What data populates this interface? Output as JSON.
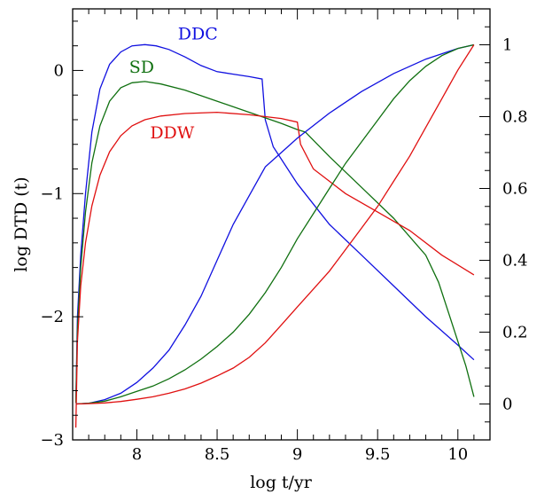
{
  "colors": {
    "DDC": "#1010e0",
    "SD": "#107010",
    "DDW": "#e01010"
  },
  "chart_data": {
    "type": "line",
    "title": "",
    "xlabel": "log t/yr",
    "ylabel": "log DTD (t)",
    "ylabel_right": "",
    "xlim": [
      7.6,
      10.2
    ],
    "ylim_left": [
      -3,
      0.5
    ],
    "ylim_right": [
      -0.1,
      1.1
    ],
    "x_ticks": [
      "8",
      "8.5",
      "9",
      "9.5",
      "10"
    ],
    "x_tick_values": [
      8,
      8.5,
      9,
      9.5,
      10
    ],
    "y_left_ticks": [
      "−3",
      "−2",
      "−1",
      "0"
    ],
    "y_left_tick_values": [
      -3,
      -2,
      -1,
      0
    ],
    "y_right_ticks": [
      "0",
      "0.2",
      "0.4",
      "0.6",
      "0.8",
      "1"
    ],
    "y_right_tick_values": [
      0,
      0.2,
      0.4,
      0.6,
      0.8,
      1
    ],
    "grid": false,
    "series_labels": [
      {
        "name": "DDC",
        "x": 8.38,
        "y": 0.25
      },
      {
        "name": "SD",
        "x": 8.03,
        "y": -0.02
      },
      {
        "name": "DDW",
        "x": 8.22,
        "y": -0.55
      }
    ],
    "series": [
      {
        "name": "DDC",
        "axis": "left",
        "x": [
          7.62,
          7.63,
          7.65,
          7.68,
          7.72,
          7.77,
          7.83,
          7.9,
          7.97,
          8.05,
          8.12,
          8.2,
          8.3,
          8.4,
          8.5,
          8.6,
          8.7,
          8.78,
          8.8,
          8.85,
          9.0,
          9.2,
          9.4,
          9.6,
          9.8,
          10.0,
          10.1
        ],
        "y": [
          -2.7,
          -2.0,
          -1.5,
          -1.0,
          -0.5,
          -0.15,
          0.05,
          0.15,
          0.2,
          0.21,
          0.2,
          0.17,
          0.11,
          0.04,
          -0.01,
          -0.03,
          -0.05,
          -0.07,
          -0.4,
          -0.62,
          -0.92,
          -1.25,
          -1.5,
          -1.75,
          -2.0,
          -2.23,
          -2.35
        ]
      },
      {
        "name": "SD",
        "axis": "left",
        "x": [
          7.62,
          7.63,
          7.65,
          7.68,
          7.72,
          7.77,
          7.83,
          7.9,
          7.97,
          8.05,
          8.15,
          8.3,
          8.5,
          8.7,
          8.9,
          9.0,
          9.05,
          9.2,
          9.4,
          9.6,
          9.8,
          9.88,
          9.95,
          10.05,
          10.1
        ],
        "y": [
          -2.7,
          -2.1,
          -1.6,
          -1.15,
          -0.75,
          -0.45,
          -0.25,
          -0.14,
          -0.1,
          -0.09,
          -0.11,
          -0.16,
          -0.25,
          -0.34,
          -0.43,
          -0.48,
          -0.5,
          -0.7,
          -0.95,
          -1.2,
          -1.5,
          -1.72,
          -2.0,
          -2.4,
          -2.65
        ]
      },
      {
        "name": "DDW",
        "axis": "left",
        "x": [
          7.62,
          7.63,
          7.65,
          7.68,
          7.72,
          7.77,
          7.83,
          7.9,
          7.97,
          8.05,
          8.15,
          8.3,
          8.5,
          8.7,
          8.9,
          9.0,
          9.02,
          9.1,
          9.3,
          9.5,
          9.7,
          9.9,
          10.1
        ],
        "y": [
          -2.9,
          -2.2,
          -1.75,
          -1.4,
          -1.1,
          -0.85,
          -0.66,
          -0.53,
          -0.45,
          -0.4,
          -0.37,
          -0.35,
          -0.34,
          -0.36,
          -0.39,
          -0.42,
          -0.6,
          -0.8,
          -1.0,
          -1.15,
          -1.3,
          -1.5,
          -1.66
        ]
      },
      {
        "name": "DDC",
        "axis": "right",
        "label_hidden": true,
        "x": [
          7.62,
          7.7,
          7.8,
          7.9,
          8.0,
          8.1,
          8.2,
          8.3,
          8.4,
          8.5,
          8.6,
          8.7,
          8.8,
          8.9,
          9.0,
          9.2,
          9.4,
          9.6,
          9.8,
          10.0,
          10.1
        ],
        "y": [
          0.0,
          0.002,
          0.012,
          0.03,
          0.06,
          0.1,
          0.15,
          0.22,
          0.3,
          0.4,
          0.5,
          0.58,
          0.66,
          0.7,
          0.74,
          0.81,
          0.87,
          0.92,
          0.96,
          0.99,
          1.0
        ]
      },
      {
        "name": "SD",
        "axis": "right",
        "label_hidden": true,
        "x": [
          7.62,
          7.7,
          7.8,
          7.9,
          8.0,
          8.1,
          8.2,
          8.3,
          8.4,
          8.5,
          8.6,
          8.7,
          8.8,
          8.9,
          9.0,
          9.1,
          9.2,
          9.3,
          9.4,
          9.5,
          9.6,
          9.7,
          9.8,
          9.9,
          10.0,
          10.1
        ],
        "y": [
          0.0,
          0.002,
          0.008,
          0.02,
          0.035,
          0.05,
          0.07,
          0.095,
          0.125,
          0.16,
          0.2,
          0.25,
          0.31,
          0.38,
          0.46,
          0.53,
          0.6,
          0.67,
          0.73,
          0.79,
          0.85,
          0.9,
          0.94,
          0.97,
          0.99,
          1.0
        ]
      },
      {
        "name": "DDW",
        "axis": "right",
        "label_hidden": true,
        "x": [
          7.62,
          7.7,
          7.8,
          7.9,
          8.0,
          8.1,
          8.2,
          8.3,
          8.4,
          8.5,
          8.6,
          8.7,
          8.8,
          8.9,
          9.0,
          9.1,
          9.2,
          9.3,
          9.4,
          9.5,
          9.6,
          9.7,
          9.8,
          9.9,
          10.0,
          10.1
        ],
        "y": [
          0.0,
          0.001,
          0.003,
          0.007,
          0.013,
          0.02,
          0.03,
          0.042,
          0.058,
          0.078,
          0.1,
          0.13,
          0.17,
          0.22,
          0.27,
          0.32,
          0.37,
          0.43,
          0.49,
          0.55,
          0.62,
          0.69,
          0.77,
          0.85,
          0.93,
          1.0
        ]
      }
    ]
  }
}
